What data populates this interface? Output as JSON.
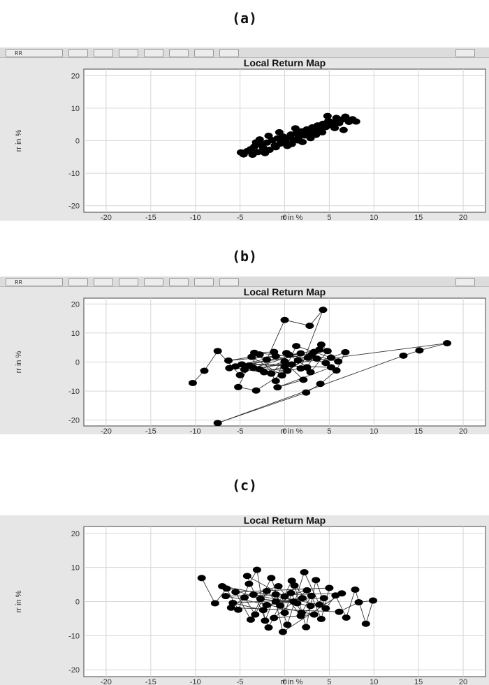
{
  "panel_labels": [
    "(a)",
    "(b)",
    "(c)"
  ],
  "toolbar": {
    "label": "RR",
    "buttons": [
      "info-icon",
      "grid-icon",
      "image-icon",
      "zoom-in-icon",
      "zoom-out-icon",
      "data-cursor-icon",
      "edit-plot-icon"
    ],
    "right_button": "play-icon"
  },
  "chart_data": [
    {
      "type": "scatter",
      "title": "Local Return Map",
      "xlabel": "rr   in %",
      "ylabel": "rr  in %",
      "xlim": [
        -22.5,
        22.5
      ],
      "ylim": [
        -22,
        22
      ],
      "xticks": [
        -20,
        -15,
        -10,
        -5,
        0,
        5,
        10,
        15,
        20
      ],
      "yticks": [
        20,
        10,
        0,
        -10,
        -20
      ],
      "grid": true,
      "connected": false,
      "marker_color": "#000000",
      "points": [
        [
          -4.6,
          -4.2
        ],
        [
          -4.2,
          -3.2
        ],
        [
          -3.8,
          -2.6
        ],
        [
          -3.4,
          -1.8
        ],
        [
          -3,
          -3.5
        ],
        [
          -2.7,
          -1.2
        ],
        [
          -2.4,
          -2.2
        ],
        [
          -2,
          -0.6
        ],
        [
          -1.7,
          -2.8
        ],
        [
          -1.4,
          0.2
        ],
        [
          -1.1,
          -1.4
        ],
        [
          -0.8,
          0.7
        ],
        [
          -0.5,
          -0.9
        ],
        [
          -0.2,
          1.3
        ],
        [
          0.1,
          -0.3
        ],
        [
          0.4,
          0.9
        ],
        [
          0.7,
          1.9
        ],
        [
          1,
          0.4
        ],
        [
          1.3,
          2.3
        ],
        [
          1.6,
          1.2
        ],
        [
          1.9,
          2.9
        ],
        [
          2.2,
          1.6
        ],
        [
          2.5,
          3.5
        ],
        [
          2.8,
          2.4
        ],
        [
          3.1,
          4.1
        ],
        [
          3.4,
          3
        ],
        [
          3.7,
          4.7
        ],
        [
          4,
          3.6
        ],
        [
          4.3,
          5.2
        ],
        [
          4.6,
          4.2
        ],
        [
          4.9,
          6.1
        ],
        [
          5.2,
          4.8
        ],
        [
          5.5,
          5.6
        ],
        [
          5.8,
          7
        ],
        [
          6.1,
          5.4
        ],
        [
          6.4,
          6.5
        ],
        [
          6.8,
          7.4
        ],
        [
          7.2,
          5.8
        ],
        [
          7.6,
          6.6
        ],
        [
          8,
          5.9
        ],
        [
          -4.9,
          -3.6
        ],
        [
          -3.6,
          -4.3
        ],
        [
          -2.2,
          -3.8
        ],
        [
          -1,
          -2
        ],
        [
          0.3,
          -1.6
        ],
        [
          1.5,
          0.1
        ],
        [
          2.9,
          0.8
        ],
        [
          4.2,
          2.6
        ],
        [
          5.6,
          3.9
        ],
        [
          -0.6,
          2.6
        ],
        [
          1.2,
          3.8
        ],
        [
          -2.8,
          0.4
        ],
        [
          0.8,
          -1
        ],
        [
          3.5,
          1.8
        ],
        [
          6.6,
          3.3
        ],
        [
          -3.2,
          -0.5
        ],
        [
          2,
          -0.4
        ],
        [
          4.8,
          7.6
        ],
        [
          -1.8,
          1.5
        ],
        [
          0,
          0
        ]
      ]
    },
    {
      "type": "scatter",
      "title": "Local Return Map",
      "xlabel": "rr   in %",
      "ylabel": "rr  in %",
      "xlim": [
        -22.5,
        22.5
      ],
      "ylim": [
        -22,
        22
      ],
      "xticks": [
        -20,
        -15,
        -10,
        -5,
        0,
        5,
        10,
        15,
        20
      ],
      "yticks": [
        20,
        10,
        0,
        -10,
        -20
      ],
      "grid": true,
      "connected": true,
      "marker_color": "#000000",
      "points": [
        [
          -10.3,
          -7.2
        ],
        [
          -9,
          -3
        ],
        [
          -7.5,
          3.8
        ],
        [
          -5,
          -4.5
        ],
        [
          -2.8,
          2.6
        ],
        [
          -1,
          -6.5
        ],
        [
          0.2,
          3.1
        ],
        [
          2.5,
          -1.8
        ],
        [
          4.1,
          6
        ],
        [
          6,
          0.2
        ],
        [
          3,
          2.5
        ],
        [
          -3.2,
          -9.8
        ],
        [
          -5.2,
          -8.6
        ],
        [
          -4,
          -1.2
        ],
        [
          -2,
          0.8
        ],
        [
          0,
          14.5
        ],
        [
          2.8,
          12.5
        ],
        [
          4.3,
          18
        ],
        [
          1.8,
          -2.2
        ],
        [
          -1.5,
          -4
        ],
        [
          0.5,
          2.5
        ],
        [
          -6.3,
          0.5
        ],
        [
          -3.7,
          1.8
        ],
        [
          -0.3,
          -4.6
        ],
        [
          1.3,
          5.5
        ],
        [
          3.3,
          3.5
        ],
        [
          5.2,
          1.5
        ],
        [
          6.8,
          3.4
        ],
        [
          5.8,
          -2.9
        ],
        [
          4,
          -7.5
        ],
        [
          2.4,
          -10.5
        ],
        [
          -7.5,
          -21
        ],
        [
          13.3,
          2.2
        ],
        [
          15.1,
          4
        ],
        [
          18.2,
          6.5
        ],
        [
          -4.5,
          -2.6
        ],
        [
          -2.3,
          -3.5
        ],
        [
          0,
          -1.6
        ],
        [
          1.5,
          0.6
        ],
        [
          3.6,
          1.2
        ],
        [
          -3.4,
          3.2
        ],
        [
          -1.2,
          3.5
        ],
        [
          2.1,
          -6.1
        ],
        [
          -0.8,
          -8.7
        ],
        [
          5.2,
          -1.8
        ],
        [
          -4.8,
          -0.8
        ],
        [
          0.8,
          -0.8
        ],
        [
          3.9,
          4.3
        ],
        [
          -6.2,
          -2.1
        ],
        [
          -2.8,
          -2.5
        ],
        [
          0,
          0.2
        ],
        [
          2.9,
          -3.5
        ],
        [
          4.8,
          3.8
        ],
        [
          -5.5,
          -1.5
        ],
        [
          -1,
          2
        ],
        [
          1.8,
          3
        ],
        [
          -3.5,
          -2
        ],
        [
          0.3,
          -3
        ],
        [
          2.6,
          1.5
        ],
        [
          4.6,
          -0.3
        ]
      ]
    },
    {
      "type": "scatter",
      "title": "Local Return Map",
      "xlabel": "rr   in %",
      "ylabel": "rr  in %",
      "xlim": [
        -22.5,
        22.5
      ],
      "ylim": [
        -22,
        22
      ],
      "xticks": [
        -20,
        -15,
        -10,
        -5,
        0,
        5,
        10,
        15,
        20
      ],
      "yticks": [
        20,
        10,
        0,
        -10,
        -20
      ],
      "grid": true,
      "connected": true,
      "marker_color": "#000000",
      "points": [
        [
          -9.3,
          6.9
        ],
        [
          -7.8,
          -0.5
        ],
        [
          -6.5,
          3.8
        ],
        [
          -5.2,
          -2.4
        ],
        [
          -4,
          5.2
        ],
        [
          -3.1,
          9.3
        ],
        [
          -2.2,
          -5.6
        ],
        [
          -1,
          2.1
        ],
        [
          0,
          -3.3
        ],
        [
          1.1,
          4.7
        ],
        [
          2.4,
          -7.5
        ],
        [
          3.5,
          6.3
        ],
        [
          4.6,
          -2
        ],
        [
          5.7,
          1.8
        ],
        [
          6.9,
          -4.7
        ],
        [
          7.9,
          3.5
        ],
        [
          9.1,
          -6.5
        ],
        [
          9.9,
          0.3
        ],
        [
          8.3,
          -0.2
        ],
        [
          6.1,
          -3
        ],
        [
          -6,
          -1.8
        ],
        [
          -4.5,
          1.2
        ],
        [
          -3.3,
          -3.8
        ],
        [
          -2,
          3.1
        ],
        [
          -0.5,
          -1.2
        ],
        [
          0.7,
          2.5
        ],
        [
          1.9,
          -3.3
        ],
        [
          3,
          1.7
        ],
        [
          4.1,
          -5.1
        ],
        [
          5,
          4
        ],
        [
          -5.5,
          2.8
        ],
        [
          -3.8,
          -5.3
        ],
        [
          -1.5,
          6.9
        ],
        [
          0.3,
          -6.8
        ],
        [
          2.2,
          8.6
        ],
        [
          3.9,
          -0.9
        ],
        [
          -7,
          4.5
        ],
        [
          -2.7,
          0.8
        ],
        [
          1.4,
          -0.5
        ],
        [
          -4.2,
          7.5
        ],
        [
          -1.8,
          -7.6
        ],
        [
          0.8,
          6.1
        ],
        [
          2.9,
          -1.3
        ],
        [
          -3.5,
          2
        ],
        [
          -0.7,
          4.5
        ],
        [
          1.8,
          -4.2
        ],
        [
          4.4,
          1
        ],
        [
          -5.8,
          -0.4
        ],
        [
          -2.4,
          -2.5
        ],
        [
          0,
          1.5
        ],
        [
          2.5,
          3.3
        ],
        [
          -1.2,
          -4.8
        ],
        [
          3.3,
          -3.8
        ],
        [
          -6.6,
          1.6
        ],
        [
          6.4,
          2.4
        ],
        [
          -0.2,
          -8.9
        ],
        [
          -1,
          0
        ],
        [
          1,
          0
        ],
        [
          -2,
          -1
        ],
        [
          2,
          1
        ]
      ]
    }
  ]
}
